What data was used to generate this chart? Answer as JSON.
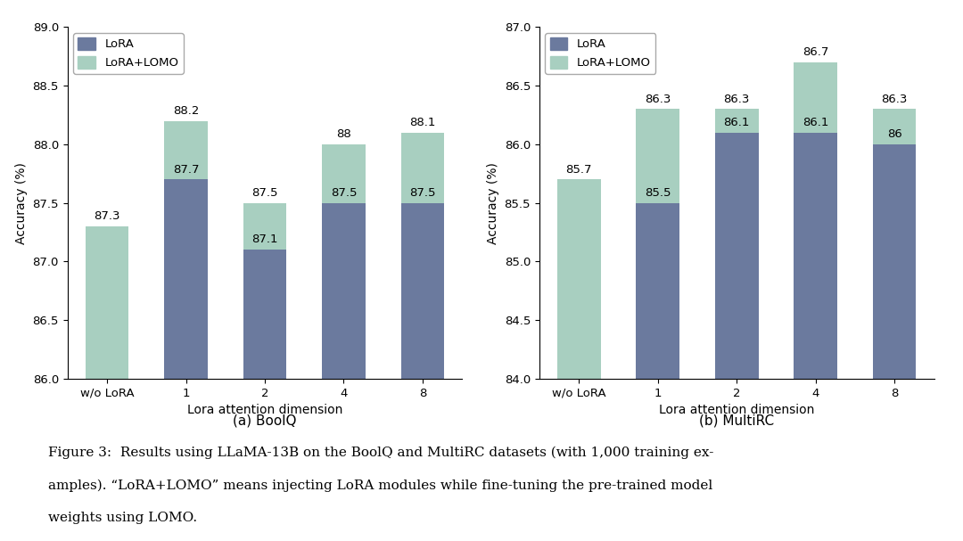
{
  "boolq": {
    "categories": [
      "w/o LoRA",
      "1",
      "2",
      "4",
      "8"
    ],
    "lora_values": [
      null,
      87.7,
      87.1,
      87.5,
      87.5
    ],
    "lomo_values": [
      87.3,
      88.2,
      87.5,
      88.0,
      88.1
    ],
    "lomo_labels": [
      "87.3",
      "88.2",
      "87.5",
      "88",
      "88.1"
    ],
    "lora_labels": [
      null,
      "87.7",
      "87.1",
      "87.5",
      "87.5"
    ],
    "ylim": [
      86.0,
      89.0
    ],
    "yticks": [
      86.0,
      86.5,
      87.0,
      87.5,
      88.0,
      88.5,
      89.0
    ],
    "xlabel": "Lora attention dimension",
    "ylabel": "Accuracy (%)",
    "title": "(a) BoolQ"
  },
  "multirc": {
    "categories": [
      "w/o LoRA",
      "1",
      "2",
      "4",
      "8"
    ],
    "lora_values": [
      null,
      85.5,
      86.1,
      86.1,
      86.0
    ],
    "lomo_values": [
      85.7,
      86.3,
      86.3,
      86.7,
      86.3
    ],
    "lomo_labels": [
      "85.7",
      "86.3",
      "86.3",
      "86.7",
      "86.3"
    ],
    "lora_labels": [
      null,
      "85.5",
      "86.1",
      "86.1",
      "86"
    ],
    "ylim": [
      84.0,
      87.0
    ],
    "yticks": [
      84.0,
      84.5,
      85.0,
      85.5,
      86.0,
      86.5,
      87.0
    ],
    "xlabel": "Lora attention dimension",
    "ylabel": "Accuracy (%)",
    "title": "(b) MultiRC"
  },
  "color_lora": "#6b7a9e",
  "color_lomo": "#a8cfc0",
  "legend_labels": [
    "LoRA",
    "LoRA+LOMO"
  ],
  "caption_line1": "Figure 3:  Results using LLaMA-13B on the BoolQ and MultiRC datasets (with 1,000 training ex-",
  "caption_line2": "amples). “LoRA+LOMO” means injecting LoRA modules while fine-tuning the pre-trained model",
  "caption_line3": "weights using LOMO.",
  "bar_width": 0.55
}
